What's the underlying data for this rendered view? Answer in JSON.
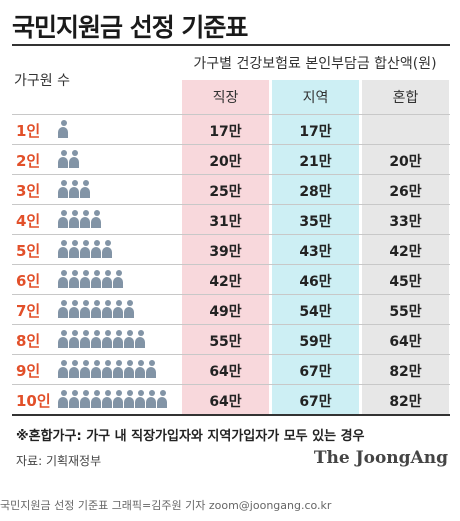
{
  "title": "국민지원금 선정 기준표",
  "header": {
    "left": "가구원 수",
    "right_top": "가구별 건강보험료 본인부담금 합산액(원)",
    "columns": [
      "직장",
      "지역",
      "혼합"
    ]
  },
  "rows": [
    {
      "label": "1인",
      "people": 1,
      "a": "17만",
      "b": "17만",
      "c": ""
    },
    {
      "label": "2인",
      "people": 2,
      "a": "20만",
      "b": "21만",
      "c": "20만"
    },
    {
      "label": "3인",
      "people": 3,
      "a": "25만",
      "b": "28만",
      "c": "26만"
    },
    {
      "label": "4인",
      "people": 4,
      "a": "31만",
      "b": "35만",
      "c": "33만"
    },
    {
      "label": "5인",
      "people": 5,
      "a": "39만",
      "b": "43만",
      "c": "42만"
    },
    {
      "label": "6인",
      "people": 6,
      "a": "42만",
      "b": "46만",
      "c": "45만"
    },
    {
      "label": "7인",
      "people": 7,
      "a": "49만",
      "b": "54만",
      "c": "55만"
    },
    {
      "label": "8인",
      "people": 8,
      "a": "55만",
      "b": "59만",
      "c": "64만"
    },
    {
      "label": "9인",
      "people": 9,
      "a": "64만",
      "b": "67만",
      "c": "82만"
    },
    {
      "label": "10인",
      "people": 10,
      "a": "64만",
      "b": "67만",
      "c": "82만"
    }
  ],
  "note": "※혼합가구: 가구 내 직장가입자와 지역가입자가 모두 있는 경우",
  "source": "자료: 기획재정부",
  "brand": "The JoongAng",
  "caption": "국민지원금 선정 기준표 그래픽=김주원 기자 zoom@joongang.co.kr",
  "colors": {
    "label": "#e2502a",
    "col_a": "#f8d8dc",
    "col_b": "#cdeff4",
    "col_c": "#e7e7e7",
    "person": "#8294a6"
  },
  "icons": {
    "person": "person-icon"
  }
}
